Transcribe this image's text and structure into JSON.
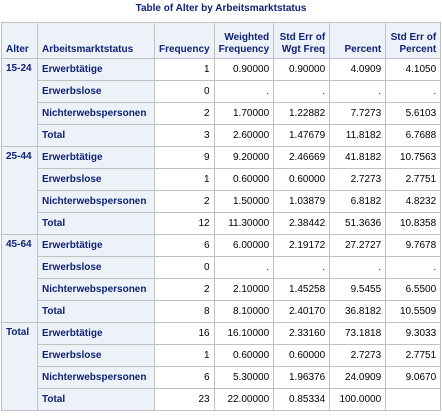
{
  "title": "Table of Alter by Arbeitsmarktstatus",
  "headers": {
    "alter": "Alter",
    "status": "Arbeitsmarktstatus",
    "freq": [
      "Frequency"
    ],
    "wfreq": [
      "Weighted",
      "Frequency"
    ],
    "se_wf": [
      "Std Err of",
      "Wgt Freq"
    ],
    "pct": [
      "Percent"
    ],
    "se_pct": [
      "Std Err of",
      "Percent"
    ]
  },
  "rows": [
    {
      "alter": "15-24",
      "status": "Erwerbtätige",
      "freq": "1",
      "wfreq": "0.90000",
      "se_wf": "0.90000",
      "pct": "4.0909",
      "se_pct": "4.1050"
    },
    {
      "alter": "",
      "status": "Erwerbslose",
      "freq": "0",
      "wfreq": ".",
      "se_wf": ".",
      "pct": ".",
      "se_pct": "."
    },
    {
      "alter": "",
      "status": "Nichterwebspersonen",
      "freq": "2",
      "wfreq": "1.70000",
      "se_wf": "1.22882",
      "pct": "7.7273",
      "se_pct": "5.6103"
    },
    {
      "alter": "",
      "status": "Total",
      "freq": "3",
      "wfreq": "2.60000",
      "se_wf": "1.47679",
      "pct": "11.8182",
      "se_pct": "6.7688"
    },
    {
      "alter": "25-44",
      "status": "Erwerbtätige",
      "freq": "9",
      "wfreq": "9.20000",
      "se_wf": "2.46669",
      "pct": "41.8182",
      "se_pct": "10.7563"
    },
    {
      "alter": "",
      "status": "Erwerbslose",
      "freq": "1",
      "wfreq": "0.60000",
      "se_wf": "0.60000",
      "pct": "2.7273",
      "se_pct": "2.7751"
    },
    {
      "alter": "",
      "status": "Nichterwebspersonen",
      "freq": "2",
      "wfreq": "1.50000",
      "se_wf": "1.03879",
      "pct": "6.8182",
      "se_pct": "4.8232"
    },
    {
      "alter": "",
      "status": "Total",
      "freq": "12",
      "wfreq": "11.30000",
      "se_wf": "2.38442",
      "pct": "51.3636",
      "se_pct": "10.8358"
    },
    {
      "alter": "45-64",
      "status": "Erwerbtätige",
      "freq": "6",
      "wfreq": "6.00000",
      "se_wf": "2.19172",
      "pct": "27.2727",
      "se_pct": "9.7678"
    },
    {
      "alter": "",
      "status": "Erwerbslose",
      "freq": "0",
      "wfreq": ".",
      "se_wf": ".",
      "pct": ".",
      "se_pct": "."
    },
    {
      "alter": "",
      "status": "Nichterwebspersonen",
      "freq": "2",
      "wfreq": "2.10000",
      "se_wf": "1.45258",
      "pct": "9.5455",
      "se_pct": "6.5500"
    },
    {
      "alter": "",
      "status": "Total",
      "freq": "8",
      "wfreq": "8.10000",
      "se_wf": "2.40170",
      "pct": "36.8182",
      "se_pct": "10.5509"
    },
    {
      "alter": "Total",
      "status": "Erwerbtätige",
      "freq": "16",
      "wfreq": "16.10000",
      "se_wf": "2.33160",
      "pct": "73.1818",
      "se_pct": "9.3033"
    },
    {
      "alter": "",
      "status": "Erwerbslose",
      "freq": "1",
      "wfreq": "0.60000",
      "se_wf": "0.60000",
      "pct": "2.7273",
      "se_pct": "2.7751"
    },
    {
      "alter": "",
      "status": "Nichterwebspersonen",
      "freq": "6",
      "wfreq": "5.30000",
      "se_wf": "1.96376",
      "pct": "24.0909",
      "se_pct": "9.0670"
    },
    {
      "alter": "",
      "status": "Total",
      "freq": "23",
      "wfreq": "22.00000",
      "se_wf": "0.85334",
      "pct": "100.0000",
      "se_pct": ""
    }
  ]
}
